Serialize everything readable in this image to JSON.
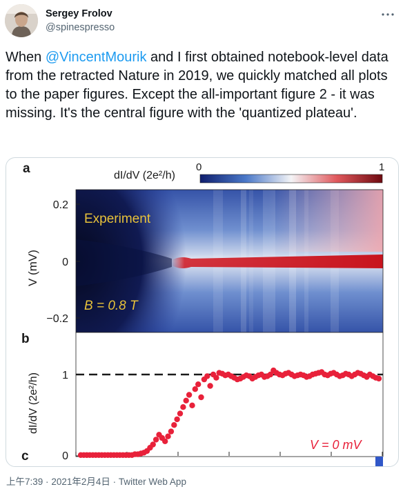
{
  "author": {
    "name": "Sergey Frolov",
    "handle": "@spinespresso"
  },
  "tweet": {
    "text_before": "When ",
    "mention": "@VincentMourik",
    "text_after": " and I first obtained notebook-level data from the retracted Nature in 2019, we quickly matched all plots to the paper figures. Except the all-important figure 2 - it was missing. It's the central figure with the 'quantized plateau'."
  },
  "meta": {
    "time": "上午7:39",
    "separator": "·",
    "date": "2021年2月4日",
    "source": "Twitter Web App"
  },
  "icons": {
    "more": "more-dots-icon"
  },
  "figure": {
    "panel_a_label": "a",
    "panel_b_label": "b",
    "panel_c_label": "c",
    "colorbar_label": "dI/dV (2e²/h)",
    "colorbar_min": "0",
    "colorbar_max": "1",
    "heatmap_ylabel": "V (mV)",
    "heatmap_yticks": [
      "0.2",
      "0",
      "−0.2"
    ],
    "experiment_label": "Experiment",
    "field_label": "B = 0.8 T",
    "plot_ylabel": "dI/dV (2e²/h)",
    "plot_yticks": [
      "1",
      "0"
    ],
    "bias_label": "V = 0 mV",
    "colors": {
      "blue": "#1c2f8c",
      "red": "#d0202a",
      "dots": "#e8213a",
      "label_yellow": "#e8c23a"
    }
  },
  "chart_data": {
    "type": "scatter",
    "title": "",
    "xlabel": "",
    "ylabel": "dI/dV (2e²/h)",
    "ylim": [
      0,
      1.25
    ],
    "reference_line": 1,
    "series": [
      {
        "name": "V = 0 mV",
        "x": [
          0,
          1,
          2,
          3,
          4,
          5,
          6,
          7,
          8,
          9,
          10,
          11,
          12,
          13,
          14,
          15,
          16,
          17,
          18,
          19,
          20,
          21,
          22,
          23,
          24,
          25,
          26,
          27,
          28,
          29,
          30,
          31,
          32,
          33,
          34,
          35,
          36,
          37,
          38,
          39,
          40,
          41,
          42,
          43,
          44,
          45,
          46,
          47,
          48,
          49,
          50,
          51,
          52,
          53,
          54,
          55,
          56,
          57,
          58,
          59,
          60,
          61,
          62,
          63,
          64,
          65,
          66,
          67,
          68,
          69,
          70,
          71,
          72,
          73,
          74,
          75,
          76,
          77,
          78,
          79,
          80,
          81,
          82,
          83,
          84,
          85,
          86,
          87,
          88,
          89,
          90,
          91,
          92,
          93,
          94,
          95,
          96,
          97,
          98,
          99
        ],
        "values": [
          0.01,
          0.01,
          0.01,
          0.01,
          0.01,
          0.01,
          0.01,
          0.01,
          0.01,
          0.01,
          0.01,
          0.01,
          0.01,
          0.01,
          0.01,
          0.01,
          0.01,
          0.01,
          0.02,
          0.02,
          0.03,
          0.04,
          0.06,
          0.1,
          0.14,
          0.2,
          0.26,
          0.22,
          0.18,
          0.24,
          0.3,
          0.38,
          0.45,
          0.52,
          0.6,
          0.68,
          0.75,
          0.62,
          0.82,
          0.88,
          0.72,
          0.94,
          0.98,
          0.86,
          1.0,
          0.96,
          1.02,
          1.01,
          0.99,
          1.0,
          0.98,
          0.96,
          0.94,
          0.95,
          0.97,
          0.99,
          0.98,
          0.95,
          0.97,
          0.99,
          1.0,
          0.97,
          0.98,
          1.0,
          1.05,
          1.02,
          1.0,
          0.99,
          1.01,
          1.02,
          1.0,
          0.98,
          0.99,
          1.0,
          0.99,
          0.97,
          0.98,
          1.0,
          1.01,
          1.02,
          1.03,
          1.0,
          0.99,
          1.01,
          1.02,
          1.0,
          0.98,
          0.99,
          1.01,
          1.0,
          0.98,
          1.0,
          1.02,
          1.01,
          0.99,
          0.97,
          1.0,
          0.98,
          0.96,
          0.95
        ]
      }
    ]
  }
}
